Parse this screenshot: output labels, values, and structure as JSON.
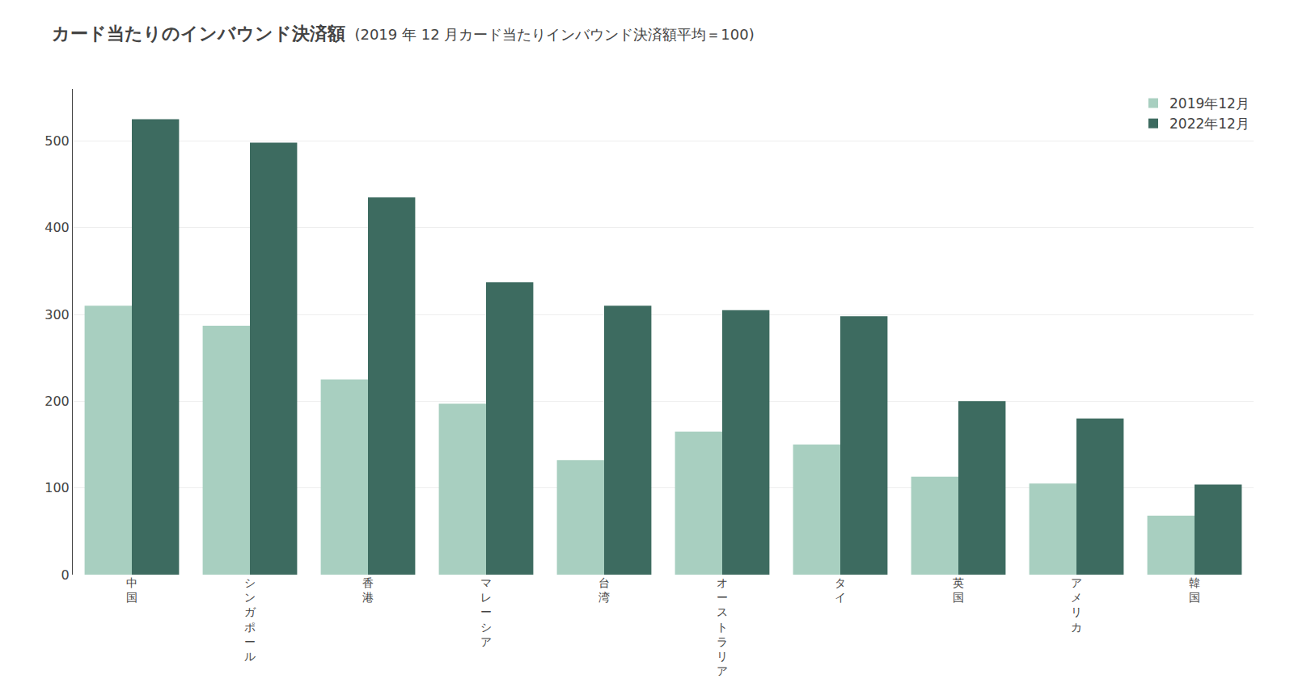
{
  "chart_data": {
    "type": "bar",
    "title": "カード当たりのインバウンド決済額",
    "subtitle": "  (2019 年 12 月カード当たりインバウンド決済額平均＝100)",
    "categories": [
      "中\n国",
      "シ\nン\nガ\nポ\nー\nル",
      "香\n港",
      "マ\nレ\nー\nシ\nア",
      "台\n湾",
      "オ\nー\nス\nト\nラ\nリ\nア",
      "タ\nイ",
      "英\n国",
      "ア\nメ\nリ\nカ",
      "韓\n国"
    ],
    "series": [
      {
        "name": "2019年12月",
        "color": "#a8cfc0",
        "values": [
          310,
          287,
          225,
          197,
          132,
          165,
          150,
          113,
          105,
          68
        ]
      },
      {
        "name": "2022年12月",
        "color": "#3d6b60",
        "values": [
          525,
          498,
          435,
          337,
          310,
          305,
          298,
          200,
          180,
          104
        ]
      }
    ],
    "ylim": [
      0,
      560
    ],
    "yticks": [
      0,
      100,
      200,
      300,
      400,
      500
    ],
    "grid": true,
    "legend": "upper right"
  }
}
